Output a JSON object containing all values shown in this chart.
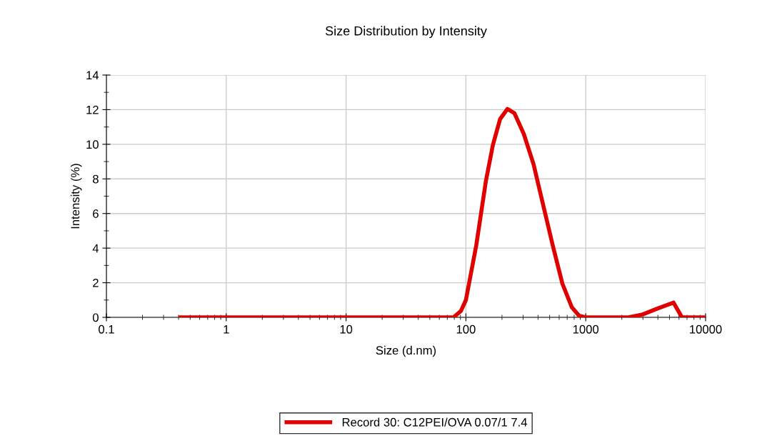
{
  "chart_data": {
    "type": "line",
    "title": "Size Distribution by Intensity",
    "xlabel": "Size (d.nm)",
    "ylabel": "Intensity (%)",
    "log": "x",
    "xlim": [
      0.1,
      10000
    ],
    "xticks": [
      {
        "value": 0.1,
        "label": "0.1"
      },
      1,
      10,
      100,
      1000,
      10000
    ],
    "ylim": [
      0,
      14
    ],
    "yticks": [
      0,
      2,
      4,
      6,
      8,
      10,
      12,
      14
    ],
    "grid": true,
    "legend": "bottom",
    "marker": "none",
    "line_style": "solid",
    "series": [
      {
        "name": "Record 30: C12PEI/OVA 0.07/1 7.4",
        "color": "#e00000",
        "x": [
          0.4,
          78.7,
          90.8,
          100,
          122,
          147,
          168,
          193,
          222,
          254,
          304,
          367,
          441,
          530,
          638,
          766,
          879,
          1000,
          2275,
          2990,
          3940,
          5400,
          6350,
          10000
        ],
        "values": [
          0,
          0,
          0.37,
          1.0,
          4.16,
          7.9,
          9.96,
          11.46,
          12.04,
          11.8,
          10.6,
          8.84,
          6.5,
          4.17,
          1.95,
          0.58,
          0.1,
          0,
          0,
          0.17,
          0.5,
          0.85,
          0,
          0
        ]
      }
    ]
  }
}
